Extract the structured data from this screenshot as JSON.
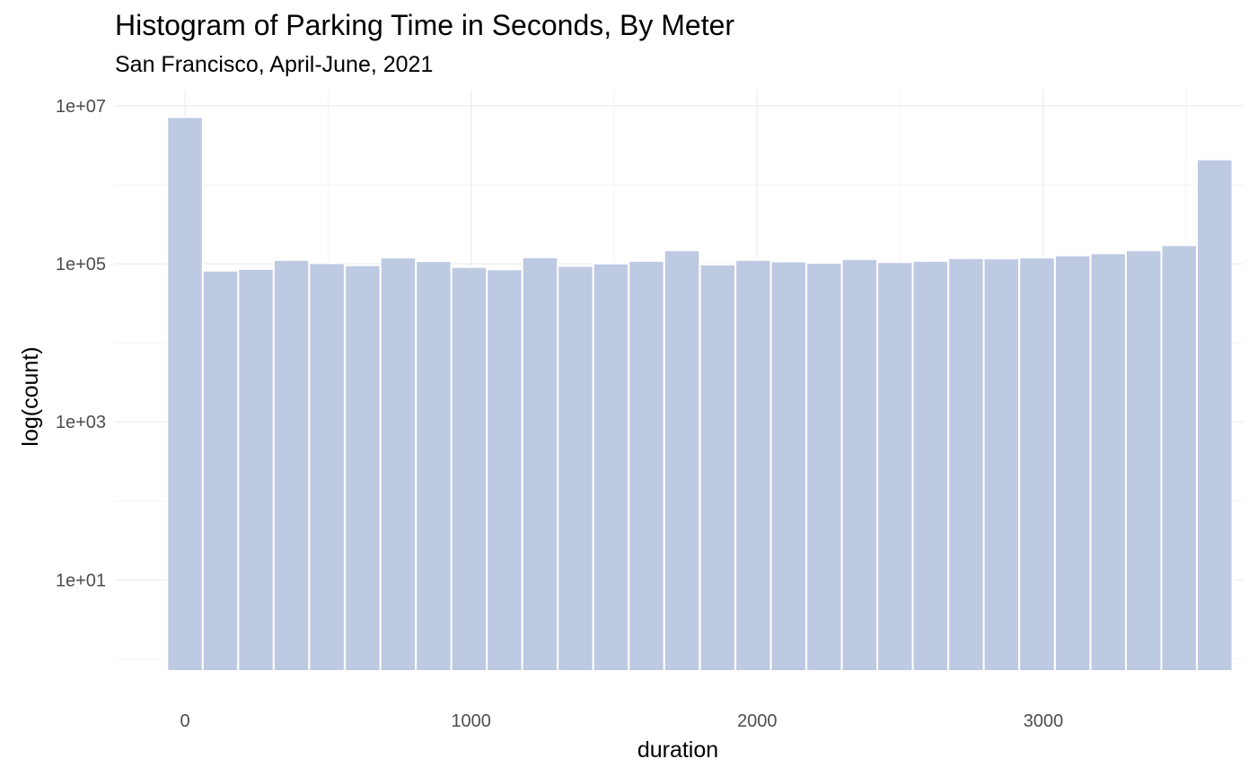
{
  "chart_data": {
    "type": "bar",
    "title": "Histogram of Parking Time in Seconds, By Meter",
    "subtitle": "San Francisco, April-June, 2021",
    "xlabel": "duration",
    "ylabel": "log(count)",
    "y_scale": "log10",
    "grid": true,
    "legend": "none",
    "bar_color": "#bec9e2",
    "bin_width": 124.1,
    "x_ticks": [
      0,
      1000,
      2000,
      3000
    ],
    "x_tick_labels": [
      "0",
      "1000",
      "2000",
      "3000"
    ],
    "y_ticks": [
      10,
      1000,
      100000,
      10000000
    ],
    "y_tick_labels": [
      "1e+01",
      "1e+03",
      "1e+05",
      "1e+07"
    ],
    "xlim": [
      -245,
      3700
    ],
    "ylim": [
      0.7,
      16000000
    ],
    "bin_centers": [
      0,
      124,
      248,
      372,
      496,
      621,
      745,
      869,
      993,
      1117,
      1241,
      1365,
      1489,
      1613,
      1737,
      1862,
      1986,
      2110,
      2234,
      2358,
      2482,
      2606,
      2730,
      2854,
      2978,
      3103,
      3227,
      3351,
      3475,
      3599
    ],
    "values": [
      7200000,
      82000,
      86000,
      112000,
      102000,
      96000,
      120000,
      108000,
      91000,
      85000,
      121000,
      94000,
      101000,
      109000,
      148000,
      98000,
      112000,
      107000,
      103000,
      115000,
      105000,
      109000,
      118000,
      117000,
      120000,
      128000,
      136000,
      148000,
      172000,
      2100000
    ]
  }
}
